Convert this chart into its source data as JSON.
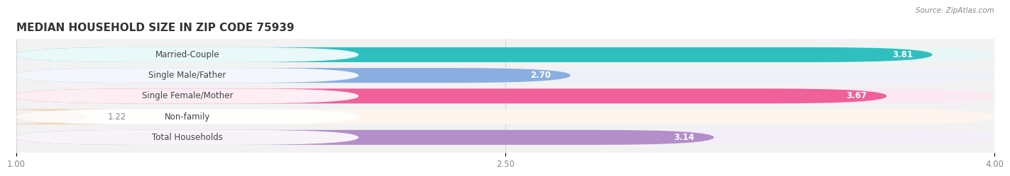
{
  "title": "MEDIAN HOUSEHOLD SIZE IN ZIP CODE 75939",
  "source": "Source: ZipAtlas.com",
  "categories": [
    "Married-Couple",
    "Single Male/Father",
    "Single Female/Mother",
    "Non-family",
    "Total Households"
  ],
  "values": [
    3.81,
    2.7,
    3.67,
    1.22,
    3.14
  ],
  "bar_colors": [
    "#2fbfbf",
    "#8aaee0",
    "#f0609a",
    "#f5c89a",
    "#b48ec8"
  ],
  "bar_bg_colors": [
    "#e8f8f8",
    "#eef1f8",
    "#fce8f2",
    "#fef6ee",
    "#f4eef8"
  ],
  "label_bg_color": "#ffffff",
  "xlim": [
    1.0,
    4.0
  ],
  "xticks": [
    1.0,
    2.5,
    4.0
  ],
  "bar_height": 0.72,
  "gap_color": "#e8e8e8",
  "label_fontsize": 8.5,
  "title_fontsize": 11,
  "value_fontsize": 8.5,
  "background_color": "#ffffff",
  "plot_bg_color": "#f2f2f2"
}
